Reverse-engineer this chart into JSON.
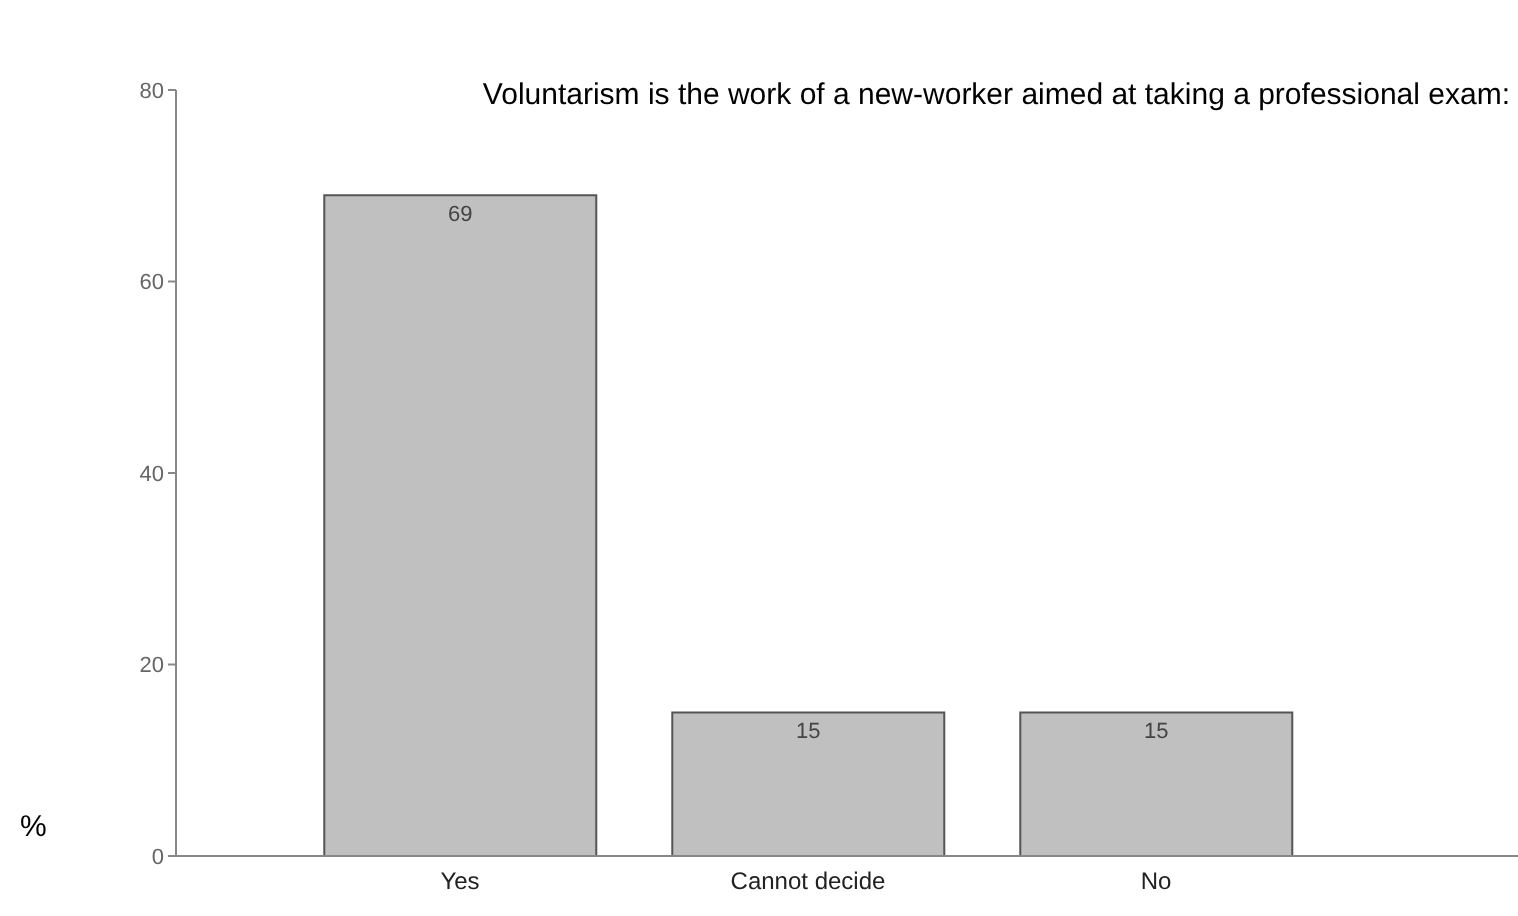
{
  "chart_data": {
    "type": "bar",
    "title": "Voluntarism is the work of a new-worker aimed at taking a professional exam:",
    "ylabel": "%",
    "categories": [
      "Yes",
      "Cannot decide",
      "No"
    ],
    "values": [
      69,
      15,
      15
    ],
    "color": "#c0c0c0",
    "ylim": [
      0,
      80
    ],
    "yticks": [
      0,
      20,
      40,
      60,
      80
    ],
    "grid": false,
    "data_labels": true
  }
}
